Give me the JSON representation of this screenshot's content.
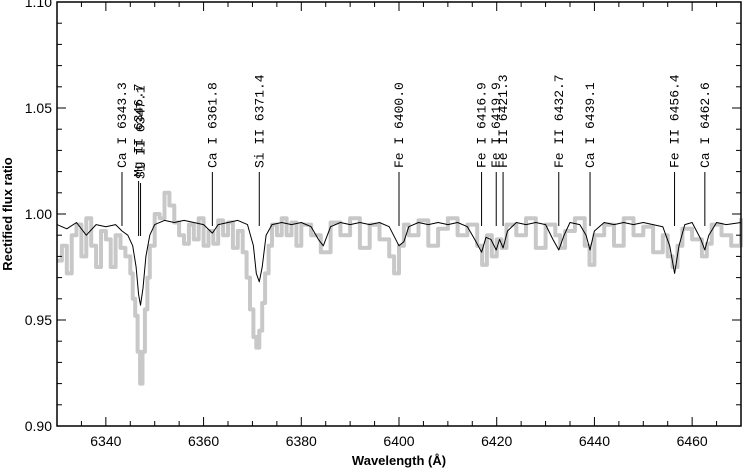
{
  "chart_data": {
    "type": "line",
    "title": "",
    "xlabel": "Wavelength (Å)",
    "ylabel": "Rectified flux ratio",
    "xlim": [
      6330,
      6470
    ],
    "ylim": [
      0.9,
      1.1
    ],
    "x_ticks": [
      "6340",
      "6360",
      "6380",
      "6400",
      "6420",
      "6440",
      "6460"
    ],
    "x_tick_values": [
      6340,
      6360,
      6380,
      6400,
      6420,
      6440,
      6460
    ],
    "y_ticks": [
      "0.90",
      "0.95",
      "1.00",
      "1.05",
      "1.10"
    ],
    "y_tick_values": [
      0.9,
      0.95,
      1.0,
      1.05,
      1.1
    ],
    "grid": false,
    "series": [
      {
        "role": "observed",
        "color": "#c8c8c8",
        "x": [
          6330,
          6331,
          6332,
          6333,
          6334,
          6335,
          6336,
          6337,
          6338,
          6339,
          6340,
          6341,
          6342,
          6343,
          6344,
          6345,
          6345.5,
          6346,
          6346.5,
          6347,
          6347.5,
          6348,
          6348.5,
          6349,
          6350,
          6351,
          6352,
          6353,
          6354,
          6355,
          6356,
          6357,
          6358,
          6359,
          6360,
          6361,
          6362,
          6363,
          6364,
          6365,
          6366,
          6367,
          6368,
          6368.8,
          6369.5,
          6370.2,
          6370.8,
          6371.4,
          6372,
          6372.6,
          6373.3,
          6374,
          6375,
          6376,
          6377,
          6378,
          6379,
          6380,
          6382,
          6384,
          6386,
          6388,
          6390,
          6392,
          6394,
          6396,
          6398,
          6399,
          6400,
          6401,
          6402,
          6404,
          6406,
          6408,
          6410,
          6412,
          6414,
          6416,
          6417,
          6418,
          6419,
          6420,
          6421,
          6422,
          6424,
          6426,
          6428,
          6430,
          6432,
          6433,
          6434,
          6436,
          6438,
          6439,
          6440,
          6442,
          6444,
          6446,
          6448,
          6450,
          6452,
          6454,
          6455,
          6456,
          6457,
          6458,
          6460,
          6462,
          6463,
          6464,
          6466,
          6468,
          6470
        ],
        "y": [
          0.978,
          0.985,
          0.972,
          0.99,
          0.995,
          0.98,
          0.998,
          0.985,
          0.975,
          0.992,
          0.988,
          0.975,
          0.99,
          0.984,
          0.98,
          0.972,
          0.96,
          0.952,
          0.935,
          0.92,
          0.935,
          0.955,
          0.97,
          0.985,
          1.0,
          0.998,
          1.01,
          1.004,
          0.996,
          0.99,
          0.986,
          0.995,
          0.988,
          0.998,
          0.985,
          0.992,
          0.986,
          0.997,
          0.99,
          0.996,
          0.984,
          0.992,
          0.982,
          0.97,
          0.955,
          0.942,
          0.937,
          0.945,
          0.958,
          0.972,
          0.985,
          0.995,
          0.99,
          0.998,
          0.99,
          0.996,
          0.985,
          0.995,
          0.99,
          0.982,
          0.996,
          0.99,
          0.998,
          0.984,
          0.995,
          0.988,
          0.98,
          0.972,
          0.985,
          0.995,
          0.99,
          0.997,
          0.985,
          0.993,
          0.998,
          0.99,
          0.995,
          0.985,
          0.976,
          0.99,
          0.98,
          0.988,
          0.984,
          0.995,
          0.99,
          0.998,
          0.984,
          0.995,
          0.99,
          0.984,
          0.992,
          0.998,
          0.985,
          0.976,
          0.99,
          0.995,
          0.985,
          0.998,
          0.99,
          0.994,
          0.982,
          0.99,
          0.98,
          0.975,
          0.985,
          0.993,
          0.988,
          0.98,
          0.986,
          0.995,
          0.99,
          0.985,
          0.998
        ]
      },
      {
        "role": "model",
        "color": "#000000",
        "x": [
          6330,
          6332,
          6334,
          6336,
          6338,
          6340,
          6342,
          6343.3,
          6344.5,
          6345.5,
          6346.2,
          6346.7,
          6347.1,
          6347.6,
          6348.2,
          6349,
          6350,
          6352,
          6354,
          6356,
          6358,
          6360,
          6361.8,
          6363,
          6365,
          6367,
          6369,
          6370.2,
          6370.8,
          6371.4,
          6372,
          6372.8,
          6374,
          6376,
          6378,
          6380,
          6382,
          6383.5,
          6384.5,
          6386,
          6388,
          6390,
          6392,
          6394,
          6396,
          6398,
          6400,
          6401,
          6402,
          6404,
          6406,
          6408,
          6410,
          6412,
          6414,
          6415.5,
          6416.9,
          6417.8,
          6418.8,
          6419.9,
          6420.6,
          6421.3,
          6422.2,
          6424,
          6426,
          6428,
          6430,
          6431.5,
          6432.7,
          6433.8,
          6435,
          6437,
          6438.3,
          6439.1,
          6440,
          6442,
          6444,
          6446,
          6448,
          6450,
          6452,
          6454,
          6455.4,
          6456.4,
          6457.3,
          6458.5,
          6460,
          6461.8,
          6462.6,
          6463.4,
          6465,
          6467,
          6470
        ],
        "y": [
          0.995,
          0.993,
          0.996,
          0.99,
          0.995,
          0.994,
          0.995,
          0.992,
          0.99,
          0.985,
          0.975,
          0.962,
          0.957,
          0.965,
          0.98,
          0.99,
          0.995,
          0.997,
          0.996,
          0.997,
          0.996,
          0.995,
          0.991,
          0.995,
          0.996,
          0.997,
          0.995,
          0.985,
          0.972,
          0.968,
          0.975,
          0.99,
          0.995,
          0.996,
          0.995,
          0.996,
          0.994,
          0.988,
          0.985,
          0.994,
          0.996,
          0.995,
          0.996,
          0.995,
          0.996,
          0.994,
          0.985,
          0.987,
          0.994,
          0.996,
          0.995,
          0.996,
          0.995,
          0.996,
          0.994,
          0.988,
          0.982,
          0.989,
          0.988,
          0.983,
          0.988,
          0.984,
          0.992,
          0.996,
          0.995,
          0.996,
          0.995,
          0.988,
          0.983,
          0.99,
          0.996,
          0.995,
          0.99,
          0.983,
          0.992,
          0.996,
          0.995,
          0.996,
          0.995,
          0.996,
          0.995,
          0.994,
          0.985,
          0.972,
          0.985,
          0.995,
          0.996,
          0.988,
          0.983,
          0.99,
          0.996,
          0.995,
          0.996
        ]
      }
    ],
    "annotations": [
      {
        "label": "Ca I 6343.3",
        "x": 6343.3,
        "row": 1
      },
      {
        "label": "Mg II 6346.7",
        "x": 6346.7,
        "row": 2
      },
      {
        "label": "Si II 6347.1",
        "x": 6347.1,
        "row": 3
      },
      {
        "label": "Ca I 6361.8",
        "x": 6361.8,
        "row": 1
      },
      {
        "label": "Si II 6371.4",
        "x": 6371.4,
        "row": 1
      },
      {
        "label": "Fe I 6400.0",
        "x": 6400.0,
        "row": 1
      },
      {
        "label": "Fe I 6416.9",
        "x": 6416.9,
        "row": 1
      },
      {
        "label": "Fe I 6419.9",
        "x": 6419.9,
        "row": 1
      },
      {
        "label": "Fe II 6421.3",
        "x": 6421.3,
        "row": 1
      },
      {
        "label": "Fe II 6432.7",
        "x": 6432.7,
        "row": 1
      },
      {
        "label": "Ca I 6439.1",
        "x": 6439.1,
        "row": 1
      },
      {
        "label": "Fe II 6456.4",
        "x": 6456.4,
        "row": 1
      },
      {
        "label": "Ca I 6462.6",
        "x": 6462.6,
        "row": 1
      }
    ]
  }
}
